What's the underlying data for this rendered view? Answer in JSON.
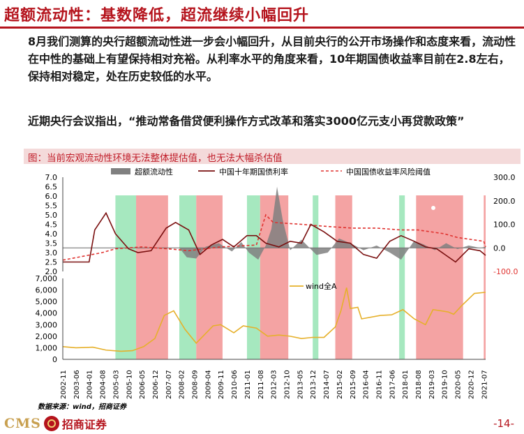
{
  "slide": {
    "title": "超额流动性：基数降低，超流继续小幅回升",
    "paragraph1": "8月我们测算的央行超额流动性进一步会小幅回升，从目前央行的公开市场操作和态度来看，流动性在中性的基础上有望保持相对充裕。从利率水平的角度来看，10年期国债收益率目前在2.8左右，保持相对稳定，处在历史较低的水平。",
    "paragraph2": "近期央行会议指出，“推动常备借贷便利操作方式改革和落实3000亿元支小再贷款政策”",
    "figure_caption": "图：当前宏观流动性环境无法整体提估值，也无法大幅杀估值",
    "source": "数据来源：wind，招商证券",
    "page_number": "-14-",
    "logo_text": "CMS",
    "logo_cn": "招商证券"
  },
  "colors": {
    "accent": "#b5141d",
    "green_band": "#a6e8bf",
    "red_band": "#f4a3a3",
    "excess_liquidity": "#808080",
    "bond_yield": "#7a0f0f",
    "risk_threshold": "#e0322f",
    "wind_a": "#e6b02a"
  },
  "chart_data": [
    {
      "type": "area",
      "title": "",
      "x_ticks": [
        "2002-11",
        "2003-06",
        "2004-01",
        "2004-08",
        "2005-03",
        "2005-10",
        "2006-05",
        "2006-12",
        "2007-07",
        "2008-02",
        "2008-09",
        "2009-04",
        "2009-11",
        "2010-06",
        "2011-01",
        "2011-08",
        "2012-03",
        "2012-10",
        "2013-05",
        "2013-12",
        "2014-07",
        "2015-02",
        "2015-09",
        "2016-04",
        "2016-11",
        "2017-06",
        "2018-01",
        "2018-08",
        "2019-03",
        "2019-10",
        "2020-05",
        "2020-12",
        "2021-07"
      ],
      "legend": [
        "超额流动性",
        "中国十年期国债利率",
        "中国国债收益率风险阈值"
      ],
      "y_left": {
        "ticks": [
          "7.0",
          "6.5",
          "6.0",
          "5.5",
          "5.0",
          "4.5",
          "4.0",
          "3.5",
          "3.0",
          "2.5",
          "2.0"
        ],
        "ylim": [
          2.0,
          7.0
        ]
      },
      "y_right": {
        "ticks": [
          "300.0",
          "200.0",
          "100.0",
          "0.0",
          "-100.0"
        ],
        "ylim": [
          -100,
          300
        ]
      },
      "green_periods": [
        [
          "2005-03",
          "2006-02"
        ],
        [
          "2008-01",
          "2008-10"
        ],
        [
          "2011-01",
          "2011-08"
        ],
        [
          "2013-12",
          "2014-03"
        ],
        [
          "2017-10",
          "2018-01"
        ]
      ],
      "red_periods": [
        [
          "2006-02",
          "2007-07"
        ],
        [
          "2008-10",
          "2009-12"
        ],
        [
          "2011-08",
          "2012-11"
        ],
        [
          "2014-12",
          "2015-09"
        ],
        [
          "2018-07",
          "2020-08"
        ],
        [
          "2021-07",
          "2021-08"
        ]
      ],
      "series": [
        {
          "name": "超额流动性",
          "axis": "right",
          "x": [
            "2008-01",
            "2008-05",
            "2008-10",
            "2009-03",
            "2009-10",
            "2010-05",
            "2010-10",
            "2011-02",
            "2011-07",
            "2011-11",
            "2012-02",
            "2012-05",
            "2012-08",
            "2012-12",
            "2013-06",
            "2014-02",
            "2014-08",
            "2015-02",
            "2015-08",
            "2016-03",
            "2016-10",
            "2017-05",
            "2017-11",
            "2018-06",
            "2018-11",
            "2019-05",
            "2019-11",
            "2020-05",
            "2020-11",
            "2021-05",
            "2021-08"
          ],
          "values": [
            0,
            -40,
            -45,
            5,
            20,
            -15,
            25,
            -20,
            -50,
            10,
            80,
            260,
            120,
            -10,
            35,
            -30,
            -20,
            40,
            20,
            -10,
            10,
            -20,
            -50,
            30,
            15,
            -10,
            20,
            -5,
            10,
            0,
            5
          ]
        },
        {
          "name": "中国十年期国债利率",
          "axis": "left",
          "x": [
            "2002-11",
            "2004-01",
            "2004-04",
            "2004-10",
            "2005-03",
            "2005-10",
            "2006-03",
            "2006-10",
            "2007-06",
            "2007-11",
            "2008-06",
            "2008-12",
            "2009-06",
            "2009-12",
            "2010-06",
            "2011-01",
            "2011-06",
            "2011-11",
            "2012-06",
            "2012-12",
            "2013-06",
            "2013-11",
            "2014-06",
            "2015-01",
            "2015-08",
            "2016-03",
            "2016-10",
            "2017-05",
            "2017-11",
            "2018-06",
            "2018-12",
            "2019-06",
            "2020-04",
            "2020-11",
            "2021-05",
            "2021-08"
          ],
          "values": [
            2.5,
            2.5,
            4.2,
            5.1,
            4.0,
            3.2,
            3.0,
            3.1,
            4.3,
            4.6,
            4.2,
            2.9,
            3.4,
            3.7,
            3.3,
            3.9,
            3.9,
            3.5,
            3.3,
            3.6,
            3.5,
            4.5,
            4.1,
            3.6,
            3.5,
            2.9,
            2.7,
            3.6,
            3.9,
            3.6,
            3.3,
            3.2,
            2.5,
            3.2,
            3.1,
            2.85
          ]
        },
        {
          "name": "中国国债收益率风险阈值",
          "axis": "left",
          "x": [
            "2002-11",
            "2004-08",
            "2005-03",
            "2006-05",
            "2007-07",
            "2008-06",
            "2009-11",
            "2011-06",
            "2011-11",
            "2012-03",
            "2013-06",
            "2014-06",
            "2015-09",
            "2016-10",
            "2017-11",
            "2018-08",
            "2019-10",
            "2020-05",
            "2021-07",
            "2021-08"
          ],
          "values": [
            2.6,
            3.0,
            3.2,
            3.3,
            3.2,
            3.1,
            3.3,
            3.4,
            5.0,
            4.6,
            4.5,
            4.4,
            4.3,
            4.3,
            4.2,
            4.2,
            4.0,
            3.8,
            3.6,
            3.3
          ]
        }
      ]
    },
    {
      "type": "line",
      "title": "",
      "x_ticks": [
        "2002-11",
        "2003-06",
        "2004-01",
        "2004-08",
        "2005-03",
        "2005-10",
        "2006-05",
        "2006-12",
        "2007-07",
        "2008-02",
        "2008-09",
        "2009-04",
        "2009-11",
        "2010-06",
        "2011-01",
        "2011-08",
        "2012-03",
        "2012-10",
        "2013-05",
        "2013-12",
        "2014-07",
        "2015-02",
        "2015-09",
        "2016-04",
        "2016-11",
        "2017-06",
        "2018-01",
        "2018-08",
        "2019-03",
        "2019-10",
        "2020-05",
        "2020-12",
        "2021-07"
      ],
      "y": {
        "ticks": [
          "7,000",
          "6,000",
          "5,000",
          "4,000",
          "3,000",
          "2,000",
          "1,000",
          "0"
        ],
        "ylim": [
          0,
          7000
        ]
      },
      "series": [
        {
          "name": "wind全A",
          "x": [
            "2002-11",
            "2003-06",
            "2004-03",
            "2004-10",
            "2005-06",
            "2005-12",
            "2006-06",
            "2006-12",
            "2007-05",
            "2007-10",
            "2008-04",
            "2008-10",
            "2009-07",
            "2009-11",
            "2010-06",
            "2010-11",
            "2011-06",
            "2011-12",
            "2012-06",
            "2012-12",
            "2013-06",
            "2013-12",
            "2014-06",
            "2014-12",
            "2015-03",
            "2015-06",
            "2015-08",
            "2015-12",
            "2016-02",
            "2016-12",
            "2017-06",
            "2017-12",
            "2018-06",
            "2018-12",
            "2019-04",
            "2019-12",
            "2020-03",
            "2020-07",
            "2021-02",
            "2021-08"
          ],
          "values": [
            1100,
            1000,
            1050,
            800,
            700,
            750,
            1100,
            1800,
            3800,
            4200,
            2600,
            1400,
            2900,
            3000,
            2300,
            2900,
            2700,
            2000,
            2100,
            2000,
            1800,
            1900,
            1900,
            2800,
            4200,
            6200,
            4400,
            4500,
            3500,
            3800,
            3850,
            4300,
            3500,
            3000,
            4300,
            4100,
            3900,
            4600,
            5700,
            5800
          ]
        }
      ]
    }
  ]
}
